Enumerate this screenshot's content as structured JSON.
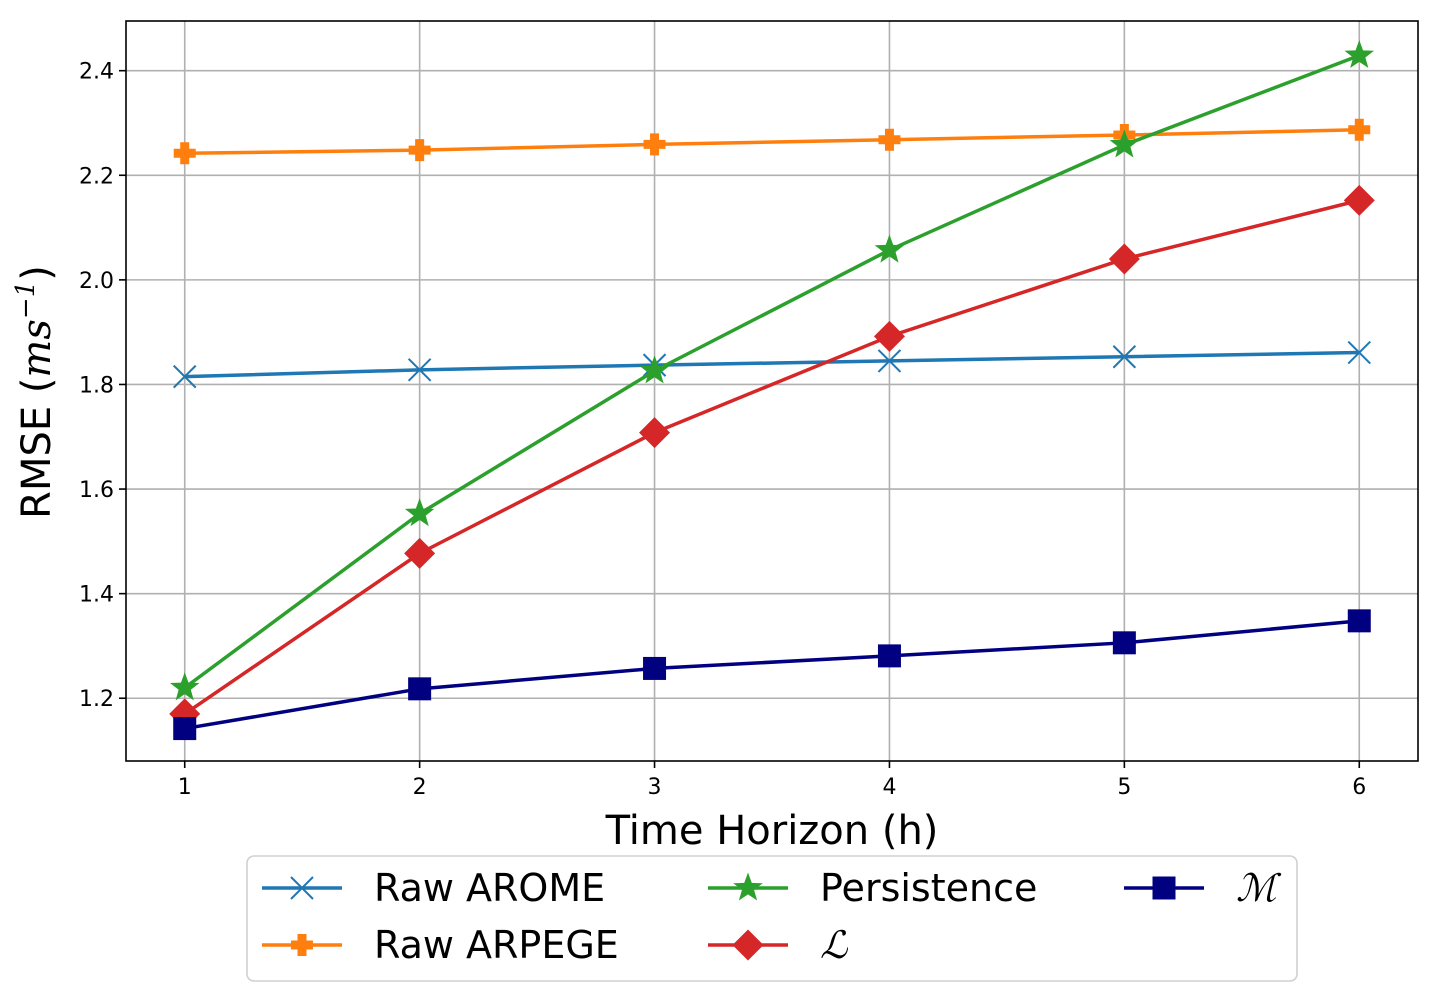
{
  "chart_data": {
    "type": "line",
    "title": "",
    "xlabel": "Time Horizon (h)",
    "ylabel": "RMSE (ms⁻¹)",
    "ylabel_parts": {
      "main": "RMSE (",
      "unit_base": "ms",
      "unit_exp": "−1",
      "close": ")"
    },
    "x": [
      1,
      2,
      3,
      4,
      5,
      6
    ],
    "xticks": [
      "1",
      "2",
      "3",
      "4",
      "5",
      "6"
    ],
    "xlim": [
      0.75,
      6.25
    ],
    "ylim": [
      1.08,
      2.495
    ],
    "yticks": [
      "1.2",
      "1.4",
      "1.6",
      "1.8",
      "2.0",
      "2.2",
      "2.4"
    ],
    "ytick_values": [
      1.2,
      1.4,
      1.6,
      1.8,
      2.0,
      2.2,
      2.4
    ],
    "grid": true,
    "legend_position": "bottom-center, outside plot",
    "series": [
      {
        "name": "Raw AROME",
        "color": "#1f77b4",
        "marker": "x",
        "values": [
          1.815,
          1.828,
          1.837,
          1.845,
          1.853,
          1.861
        ]
      },
      {
        "name": "Raw ARPEGE",
        "color": "#ff7f0e",
        "marker": "plus-filled",
        "values": [
          2.242,
          2.248,
          2.259,
          2.268,
          2.277,
          2.287
        ]
      },
      {
        "name": "Persistence",
        "color": "#2ca02c",
        "marker": "star",
        "values": [
          1.22,
          1.553,
          1.826,
          2.057,
          2.258,
          2.429
        ]
      },
      {
        "name": "ℒ",
        "color": "#d62728",
        "marker": "diamond",
        "values": [
          1.17,
          1.477,
          1.708,
          1.892,
          2.04,
          2.152
        ]
      },
      {
        "name": "ℳ",
        "color": "#000080",
        "marker": "square",
        "values": [
          1.142,
          1.218,
          1.257,
          1.281,
          1.306,
          1.348
        ]
      }
    ]
  }
}
